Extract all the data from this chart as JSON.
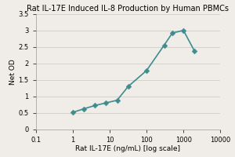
{
  "title": "Rat IL-17E Induced IL-8 Production by Human PBMCs",
  "xlabel": "Rat IL-17E (ng/mL) [log scale]",
  "ylabel": "Net OD",
  "x": [
    1,
    2,
    4,
    8,
    16,
    32,
    100,
    300,
    500,
    1000,
    2000
  ],
  "y": [
    0.51,
    0.62,
    0.72,
    0.8,
    0.88,
    1.3,
    1.78,
    2.55,
    2.92,
    3.0,
    2.37
  ],
  "xlim": [
    0.1,
    10000
  ],
  "ylim": [
    0,
    3.5
  ],
  "yticks": [
    0,
    0.5,
    1,
    1.5,
    2,
    2.5,
    3,
    3.5
  ],
  "ytick_labels": [
    "0",
    "0.5",
    "1",
    "1.5",
    "2",
    "2.5",
    "3",
    "3.5"
  ],
  "xtick_vals": [
    0.1,
    1,
    10,
    100,
    1000,
    10000
  ],
  "xtick_labels": [
    "0.1",
    "1",
    "10",
    "100",
    "1000",
    "10000"
  ],
  "line_color": "#3d8c8e",
  "marker_color": "#3d8c8e",
  "marker": "D",
  "marker_size": 3.5,
  "line_width": 1.2,
  "bg_color": "#f0ede8",
  "plot_bg_color": "#f0ede8",
  "grid_color": "#d0cdc8",
  "title_fontsize": 7.0,
  "label_fontsize": 6.5,
  "tick_fontsize": 6.0
}
